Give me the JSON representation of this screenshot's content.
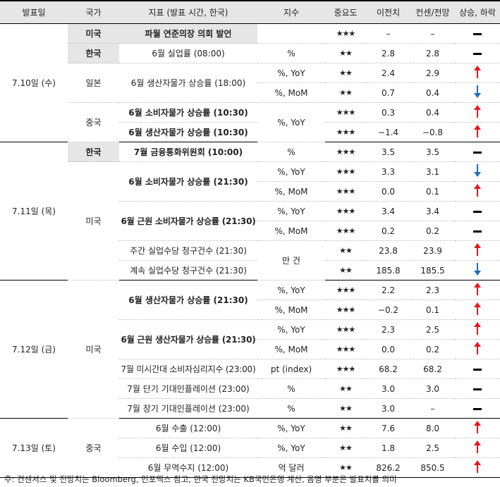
{
  "headers": [
    "발표일",
    "국가",
    "지표 (발표 시간, 한국)",
    "지수",
    "중요도",
    "이전치",
    "컨센/전망",
    "상승, 하락"
  ],
  "dates": [
    "7.10일 (수)",
    "7.11일 (목)",
    "7.12일 (금)",
    "7.13일 (토)"
  ],
  "countries": {
    "us": "미국",
    "kr": "한국",
    "jp": "일본",
    "cn": "중국"
  },
  "rows": [
    {
      "indicator": "파월 연준의장 의회 발언",
      "unit": "",
      "importance": "★★★",
      "previous": "–",
      "forecast": "–",
      "direction": "flat"
    },
    {
      "indicator": "6월 실업률 (08:00)",
      "unit": "%",
      "importance": "★★",
      "previous": "2.8",
      "forecast": "2.8",
      "direction": "flat"
    },
    {
      "indicator": "6월 생산자물가 상승률 (18:00)",
      "unit": "%, YoY",
      "importance": "★★",
      "previous": "2.4",
      "forecast": "2.9",
      "direction": "up"
    },
    {
      "indicator": "",
      "unit": "%, MoM",
      "importance": "★★",
      "previous": "0.7",
      "forecast": "0.4",
      "direction": "down"
    },
    {
      "indicator": "6월 소비자물가 상승률 (10:30)",
      "unit": "%, YoY",
      "importance": "★★★",
      "previous": "0.3",
      "forecast": "0.4",
      "direction": "up"
    },
    {
      "indicator": "6월 생산자물가 상승률 (10:30)",
      "unit": "",
      "importance": "★★★",
      "previous": "−1.4",
      "forecast": "−0.8",
      "direction": "up"
    },
    {
      "indicator": "7월 금융통화위원회 (10:00)",
      "unit": "%",
      "importance": "★★★",
      "previous": "3.5",
      "forecast": "3.5",
      "direction": "flat"
    },
    {
      "indicator": "6월 소비자물가 상승률 (21:30)",
      "unit": "%, YoY",
      "importance": "★★★",
      "previous": "3.3",
      "forecast": "3.1",
      "direction": "down"
    },
    {
      "indicator": "",
      "unit": "%, MoM",
      "importance": "★★★",
      "previous": "0.0",
      "forecast": "0.1",
      "direction": "up"
    },
    {
      "indicator": "6월 근원 소비자물가 상승률 (21:30)",
      "unit": "%, YoY",
      "importance": "★★★",
      "previous": "3.4",
      "forecast": "3.4",
      "direction": "flat"
    },
    {
      "indicator": "",
      "unit": "%, MoM",
      "importance": "★★★",
      "previous": "0.2",
      "forecast": "0.2",
      "direction": "flat"
    },
    {
      "indicator": "주간 실업수당 청구건수 (21:30)",
      "unit": "만 건",
      "importance": "★★",
      "previous": "23.8",
      "forecast": "23.9",
      "direction": "up"
    },
    {
      "indicator": "계속 실업수당 청구건수 (21:30)",
      "unit": "",
      "importance": "★★",
      "previous": "185.8",
      "forecast": "185.5",
      "direction": "down"
    },
    {
      "indicator": "6월 생산자물가 상승률 (21:30)",
      "unit": "%, YoY",
      "importance": "★★★",
      "previous": "2.2",
      "forecast": "2.3",
      "direction": "up"
    },
    {
      "indicator": "",
      "unit": "%, MoM",
      "importance": "★★★",
      "previous": "−0.2",
      "forecast": "0.1",
      "direction": "up"
    },
    {
      "indicator": "6월 근원 생산자물가 상승률 (21:30)",
      "unit": "%, YoY",
      "importance": "★★★",
      "previous": "2.3",
      "forecast": "2.5",
      "direction": "up"
    },
    {
      "indicator": "",
      "unit": "%, MoM",
      "importance": "★★★",
      "previous": "0.0",
      "forecast": "0.2",
      "direction": "up"
    },
    {
      "indicator": "7월 미시간대 소비자심리지수 (23:00)",
      "unit": "pt (index)",
      "importance": "★★★",
      "previous": "68.2",
      "forecast": "68.2",
      "direction": "flat"
    },
    {
      "indicator": "7월 단기 기대인플레이션 (23:00)",
      "unit": "%",
      "importance": "★★",
      "previous": "3.0",
      "forecast": "3.0",
      "direction": "flat"
    },
    {
      "indicator": "7월 장기 기대인플레이션 (23:00)",
      "unit": "%",
      "importance": "★★",
      "previous": "3.0",
      "forecast": "–",
      "direction": "flat"
    },
    {
      "indicator": "6월 수출 (12:00)",
      "unit": "%, YoY",
      "importance": "★★",
      "previous": "7.6",
      "forecast": "8.0",
      "direction": "up"
    },
    {
      "indicator": "6월 수입 (12:00)",
      "unit": "%, YoY",
      "importance": "★★",
      "previous": "1.8",
      "forecast": "2.5",
      "direction": "up"
    },
    {
      "indicator": "6월 무역수지 (12:00)",
      "unit": "억 달러",
      "importance": "★★",
      "previous": "826.2",
      "forecast": "850.5",
      "direction": "up"
    }
  ],
  "note": "주: 컨센서스 및 전망치는 Bloomberg, 인포맥스 참고, 한국 전망치는 KB국민은행 계산, 음영 부분은 발표치를 의미"
}
